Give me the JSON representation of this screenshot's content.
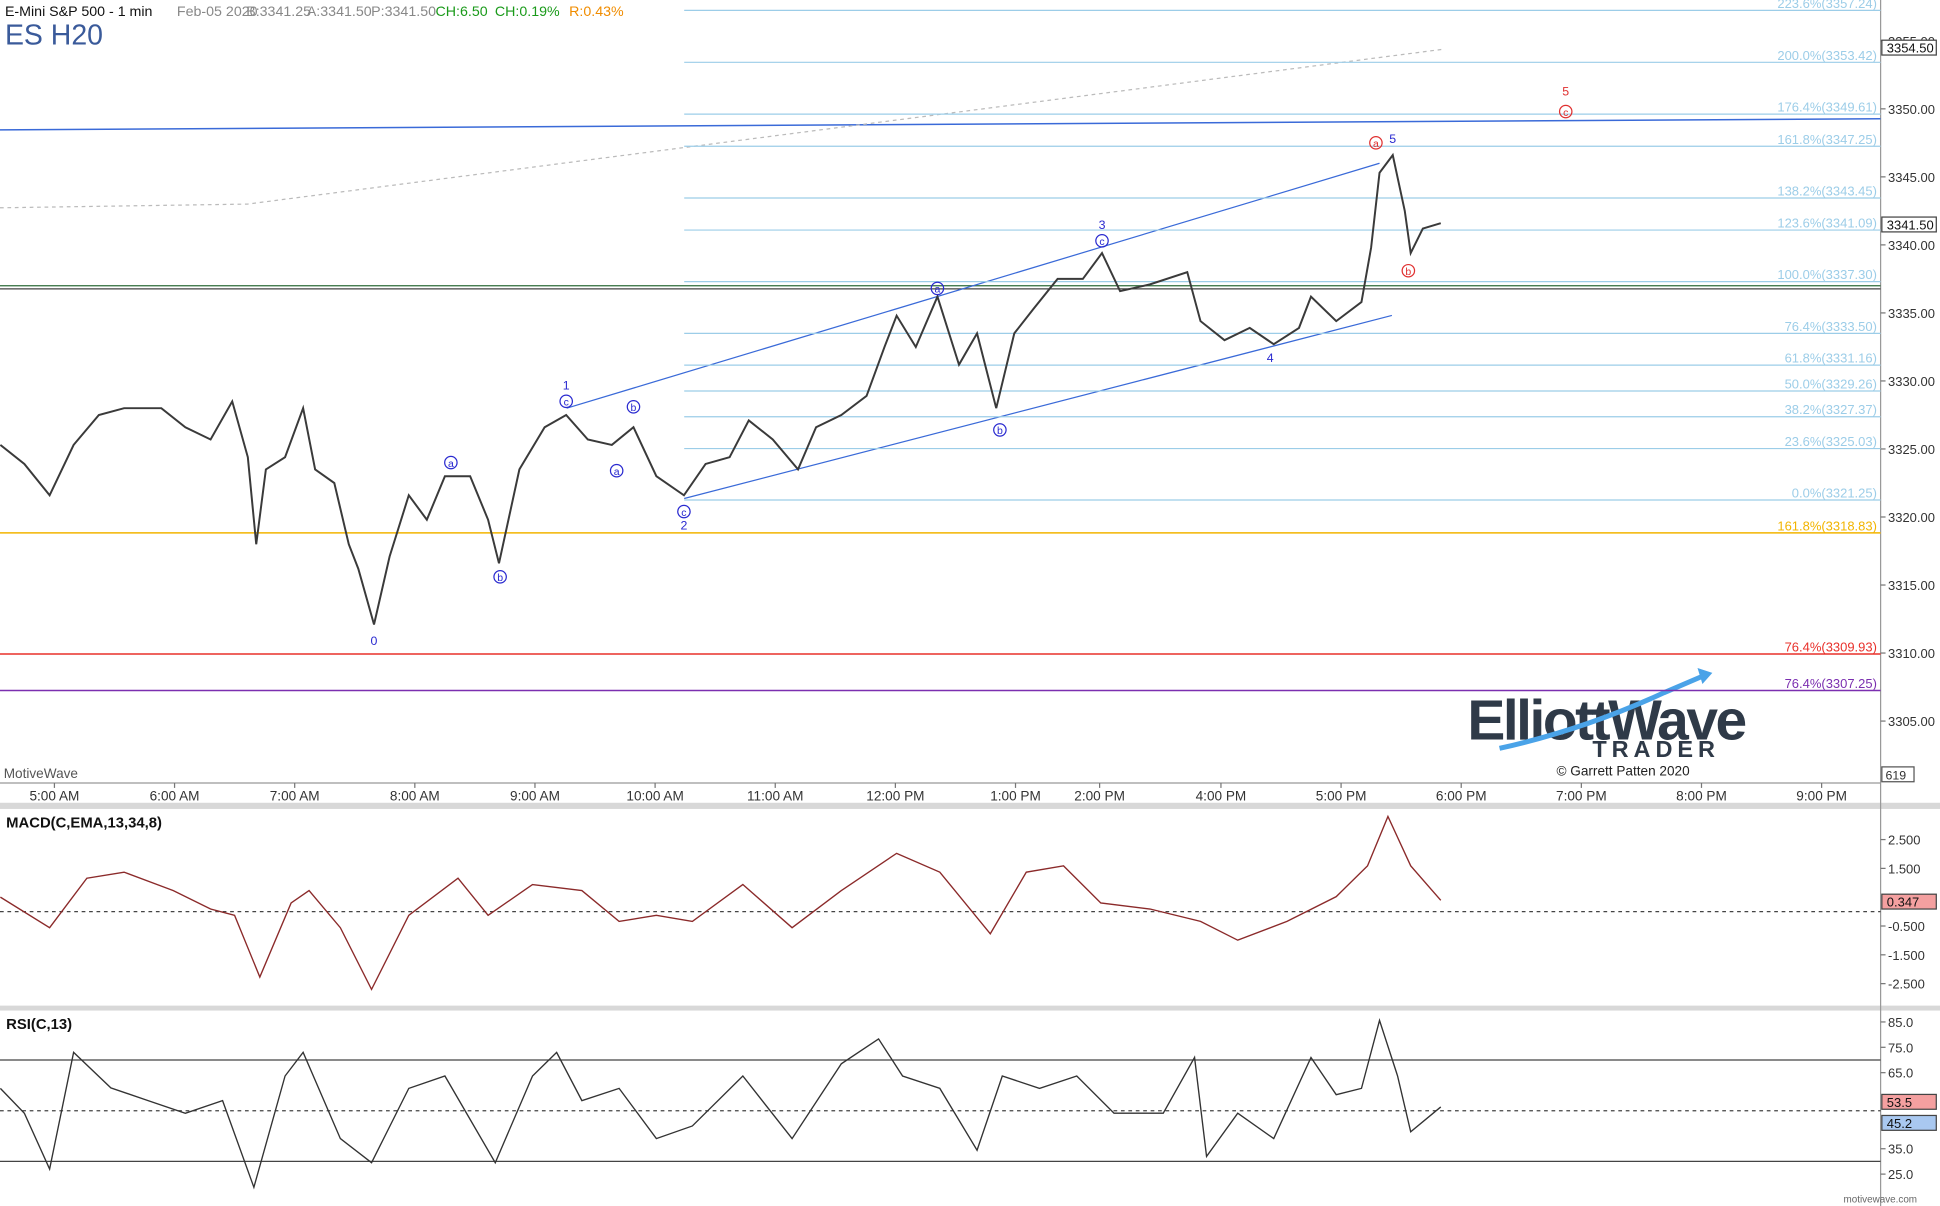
{
  "header": {
    "fields": [
      {
        "text": "E-Mini S&P 500 - 1 min",
        "color": "#111111"
      },
      {
        "text": "Feb-05 2020",
        "color": "#888888"
      },
      {
        "text": "B:3341.25",
        "color": "#888888"
      },
      {
        "text": "A:3341.50",
        "color": "#888888"
      },
      {
        "text": "P:3341.50",
        "color": "#888888"
      },
      {
        "text": "CH:6.50",
        "color": "#1a9a1a"
      },
      {
        "text": "CH:0.19%",
        "color": "#1a9a1a"
      },
      {
        "text": "R:0.43%",
        "color": "#f08c00"
      }
    ],
    "symbol": "ES H20"
  },
  "watermark": "MotiveWave",
  "volume_label": "619",
  "logo": {
    "name": "ElliottWave",
    "sub": "TRADER",
    "copyright": "© Garrett Patten 2020"
  },
  "site": "motivewave.com",
  "chart_data": [
    {
      "type": "line",
      "color": "#3a3a3a",
      "xlim": [
        4.547,
        20.201
      ],
      "xticks": [
        {
          "value": 5,
          "label": "5:00 AM"
        },
        {
          "value": 6,
          "label": "6:00 AM"
        },
        {
          "value": 7,
          "label": "7:00 AM"
        },
        {
          "value": 8,
          "label": "8:00 AM"
        },
        {
          "value": 9,
          "label": "9:00 AM"
        },
        {
          "value": 10,
          "label": "10:00 AM"
        },
        {
          "value": 11,
          "label": "11:00 AM"
        },
        {
          "value": 12,
          "label": "12:00 PM"
        },
        {
          "value": 13,
          "label": "1:00 PM"
        },
        {
          "value": 13.7,
          "label": "2:00 PM"
        },
        {
          "value": 14.71,
          "label": "4:00 PM"
        },
        {
          "value": 15.71,
          "label": "5:00 PM"
        },
        {
          "value": 16.71,
          "label": "6:00 PM"
        },
        {
          "value": 17.71,
          "label": "7:00 PM"
        },
        {
          "value": 18.71,
          "label": "8:00 PM"
        },
        {
          "value": 19.71,
          "label": "9:00 PM"
        }
      ],
      "ylim": [
        3300.45,
        3358
      ],
      "yticks": [
        {
          "value": 3305,
          "label": "3305.00"
        },
        {
          "value": 3310,
          "label": "3310.00"
        },
        {
          "value": 3315,
          "label": "3315.00"
        },
        {
          "value": 3320,
          "label": "3320.00"
        },
        {
          "value": 3325,
          "label": "3325.00"
        },
        {
          "value": 3330,
          "label": "3330.00"
        },
        {
          "value": 3335,
          "label": "3335.00"
        },
        {
          "value": 3340,
          "label": "3340.00"
        },
        {
          "value": 3345,
          "label": "3345.00"
        },
        {
          "value": 3350,
          "label": "3350.00"
        },
        {
          "value": 3355,
          "label": "3355.00"
        }
      ],
      "x": [
        4.55,
        4.75,
        4.96,
        5.16,
        5.37,
        5.58,
        5.89,
        6.09,
        6.3,
        6.48,
        6.61,
        6.68,
        6.76,
        6.92,
        7.07,
        7.17,
        7.33,
        7.45,
        7.53,
        7.66,
        7.79,
        7.95,
        8.1,
        8.25,
        8.46,
        8.61,
        8.7,
        8.87,
        9.08,
        9.26,
        9.44,
        9.64,
        9.82,
        10.01,
        10.24,
        10.42,
        10.62,
        10.78,
        10.98,
        11.19,
        11.34,
        11.55,
        11.76,
        11.91,
        12.01,
        12.17,
        12.35,
        12.53,
        12.68,
        12.84,
        12.99,
        13.15,
        13.35,
        13.56,
        13.72,
        13.87,
        14.12,
        14.43,
        14.54,
        14.74,
        14.95,
        15.15,
        15.36,
        15.46,
        15.67,
        15.88,
        15.96,
        16.03,
        16.14,
        16.24,
        16.29,
        16.39,
        16.54
      ],
      "values": [
        3325.3,
        3323.9,
        3321.6,
        3325.3,
        3327.5,
        3328,
        3328,
        3326.6,
        3325.7,
        3328.5,
        3324.4,
        3318,
        3323.5,
        3324.4,
        3328,
        3323.5,
        3322.5,
        3318,
        3316.2,
        3312.1,
        3317.1,
        3321.6,
        3319.8,
        3323,
        3323,
        3319.8,
        3316.6,
        3323.5,
        3326.6,
        3327.5,
        3325.7,
        3325.3,
        3326.6,
        3323,
        3321.6,
        3323.9,
        3324.4,
        3327.1,
        3325.7,
        3323.5,
        3326.6,
        3327.5,
        3328.9,
        3332.5,
        3334.8,
        3332.5,
        3336.2,
        3331.2,
        3333.5,
        3328,
        3333.5,
        3335.3,
        3337.5,
        3337.5,
        3339.4,
        3336.6,
        3337.1,
        3338,
        3334.4,
        3333,
        3333.9,
        3332.7,
        3333.9,
        3336.2,
        3334.4,
        3335.8,
        3339.8,
        3345.3,
        3346.6,
        3342.5,
        3339.4,
        3341.2,
        3341.6
      ],
      "fib_color": "#9ccde8",
      "fib_levels": [
        {
          "value": 3357.24,
          "label": "223.6%(3357.24)"
        },
        {
          "value": 3353.42,
          "label": "200.0%(3353.42)"
        },
        {
          "value": 3349.61,
          "label": "176.4%(3349.61)"
        },
        {
          "value": 3347.25,
          "label": "161.8%(3347.25)"
        },
        {
          "value": 3343.45,
          "label": "138.2%(3343.45)"
        },
        {
          "value": 3341.09,
          "label": "123.6%(3341.09)"
        },
        {
          "value": 3337.3,
          "label": "100.0%(3337.30)"
        },
        {
          "value": 3333.5,
          "label": "76.4%(3333.50)"
        },
        {
          "value": 3331.16,
          "label": "61.8%(3331.16)"
        },
        {
          "value": 3329.26,
          "label": "50.0%(3329.26)"
        },
        {
          "value": 3327.37,
          "label": "38.2%(3327.37)"
        },
        {
          "value": 3325.03,
          "label": "23.6%(3325.03)"
        },
        {
          "value": 3321.25,
          "label": "0.0%(3321.25)"
        }
      ],
      "levels": [
        {
          "value": 3318.83,
          "label": "161.8%(3318.83)",
          "color": "#f2b400"
        },
        {
          "value": 3309.93,
          "label": "76.4%(3309.93)",
          "color": "#e8302a"
        },
        {
          "value": 3307.25,
          "label": "76.4%(3307.25)",
          "color": "#7b2fb0"
        }
      ],
      "flags": [
        {
          "value": 3354.5,
          "label": "3354.50",
          "color": "#ffffff"
        },
        {
          "value": 3341.5,
          "label": "3341.50",
          "color": "#ffffff"
        }
      ],
      "annotations": [
        {
          "text": "0",
          "x": 7.66,
          "y": 3310.9,
          "circled": false,
          "color": "#2a2ad0"
        },
        {
          "text": "1",
          "x": 9.26,
          "y": 3329.7,
          "circled": false,
          "color": "#2a2ad0"
        },
        {
          "text": "c",
          "x": 9.26,
          "y": 3328.5,
          "circled": true,
          "color": "#2a2ad0"
        },
        {
          "text": "a",
          "x": 8.3,
          "y": 3324.0,
          "circled": true,
          "color": "#2a2ad0"
        },
        {
          "text": "b",
          "x": 8.71,
          "y": 3315.6,
          "circled": true,
          "color": "#2a2ad0"
        },
        {
          "text": "a",
          "x": 9.68,
          "y": 3323.4,
          "circled": true,
          "color": "#2a2ad0"
        },
        {
          "text": "b",
          "x": 9.82,
          "y": 3328.1,
          "circled": true,
          "color": "#2a2ad0"
        },
        {
          "text": "c",
          "x": 10.24,
          "y": 3320.4,
          "circled": true,
          "color": "#2a2ad0"
        },
        {
          "text": "2",
          "x": 10.24,
          "y": 3319.4,
          "circled": false,
          "color": "#2a2ad0"
        },
        {
          "text": "a",
          "x": 12.35,
          "y": 3336.8,
          "circled": true,
          "color": "#2a2ad0"
        },
        {
          "text": "b",
          "x": 12.87,
          "y": 3326.4,
          "circled": true,
          "color": "#2a2ad0"
        },
        {
          "text": "3",
          "x": 13.72,
          "y": 3341.5,
          "circled": false,
          "color": "#2a2ad0"
        },
        {
          "text": "c",
          "x": 13.72,
          "y": 3340.3,
          "circled": true,
          "color": "#2a2ad0"
        },
        {
          "text": "4",
          "x": 15.12,
          "y": 3331.7,
          "circled": false,
          "color": "#2a2ad0"
        },
        {
          "text": "a",
          "x": 16.0,
          "y": 3347.5,
          "circled": true,
          "color": "#e03030"
        },
        {
          "text": "5",
          "x": 16.14,
          "y": 3347.8,
          "circled": false,
          "color": "#2a2ad0"
        },
        {
          "text": "b",
          "x": 16.27,
          "y": 3338.1,
          "circled": true,
          "color": "#e03030"
        },
        {
          "text": "5",
          "x": 17.58,
          "y": 3351.3,
          "circled": false,
          "color": "#e03030"
        },
        {
          "text": "c",
          "x": 17.58,
          "y": 3349.8,
          "circled": true,
          "color": "#e03030"
        }
      ]
    },
    {
      "type": "line",
      "title": "MACD(C,EMA,13,34,8)",
      "color": "#8b2a2a",
      "xlim": [
        4.547,
        20.201
      ],
      "ylim": [
        -3.22,
        3.52
      ],
      "yticks": [
        {
          "value": -2.5,
          "label": "-2.500"
        },
        {
          "value": -1.5,
          "label": "-1.500"
        },
        {
          "value": -0.5,
          "label": "-0.500"
        },
        {
          "value": 1.5,
          "label": "1.500"
        },
        {
          "value": 2.5,
          "label": "2.500"
        }
      ],
      "hlines": [
        0
      ],
      "x": [
        4.55,
        4.96,
        5.27,
        5.58,
        5.99,
        6.3,
        6.5,
        6.71,
        6.97,
        7.12,
        7.38,
        7.64,
        7.95,
        8.36,
        8.61,
        8.98,
        9.39,
        9.7,
        10.01,
        10.31,
        10.73,
        11.14,
        11.55,
        12.01,
        12.37,
        12.79,
        13.09,
        13.4,
        13.71,
        14.12,
        14.54,
        14.85,
        15.26,
        15.67,
        15.93,
        16.1,
        16.29,
        16.54
      ],
      "values": [
        0.5,
        -0.56,
        1.16,
        1.37,
        0.73,
        0.09,
        -0.13,
        -2.27,
        0.3,
        0.73,
        -0.56,
        -2.7,
        -0.13,
        1.16,
        -0.13,
        0.94,
        0.73,
        -0.34,
        -0.13,
        -0.34,
        0.94,
        -0.56,
        0.73,
        2.02,
        1.37,
        -0.77,
        1.37,
        1.59,
        0.3,
        0.09,
        -0.34,
        -0.99,
        -0.34,
        0.52,
        1.59,
        3.3,
        1.59,
        0.39
      ],
      "flags": [
        {
          "value": 0.347,
          "color": "#f4a0a0"
        }
      ]
    },
    {
      "type": "line",
      "title": "RSI(C,13)",
      "color": "#333333",
      "xlim": [
        4.547,
        20.201
      ],
      "ylim": [
        13.4,
        89
      ],
      "yticks": [
        {
          "value": 25,
          "label": "25.0"
        },
        {
          "value": 35,
          "label": "35.0"
        },
        {
          "value": 65,
          "label": "65.0"
        },
        {
          "value": 75,
          "label": "75.0"
        },
        {
          "value": 85,
          "label": "85.0"
        }
      ],
      "hlines": [
        70,
        50,
        30
      ],
      "x": [
        4.55,
        4.75,
        4.96,
        5.16,
        5.47,
        5.78,
        6.09,
        6.4,
        6.66,
        6.92,
        7.07,
        7.38,
        7.64,
        7.95,
        8.25,
        8.67,
        8.98,
        9.18,
        9.39,
        9.7,
        10.01,
        10.31,
        10.73,
        11.14,
        11.55,
        11.86,
        12.06,
        12.37,
        12.68,
        12.89,
        13.2,
        13.51,
        13.82,
        14.23,
        14.49,
        14.59,
        14.85,
        15.15,
        15.46,
        15.67,
        15.88,
        16.03,
        16.18,
        16.29,
        16.54
      ],
      "values": [
        58.8,
        49,
        27,
        73,
        59,
        54,
        49,
        54,
        19.8,
        63.7,
        73,
        39,
        29.5,
        58.8,
        63.7,
        29.5,
        63.7,
        73,
        54,
        58.8,
        39,
        44,
        63.7,
        39,
        68.5,
        78.3,
        63.7,
        58.8,
        34.4,
        63.7,
        58.8,
        63.7,
        49,
        49,
        71,
        32,
        49,
        39,
        71,
        56.3,
        58.8,
        85.6,
        63.7,
        41.7,
        51.5
      ],
      "flags": [
        {
          "value": 53.5,
          "color": "#f4a0a0"
        },
        {
          "value": 45.2,
          "color": "#a9c8f0"
        }
      ]
    }
  ]
}
